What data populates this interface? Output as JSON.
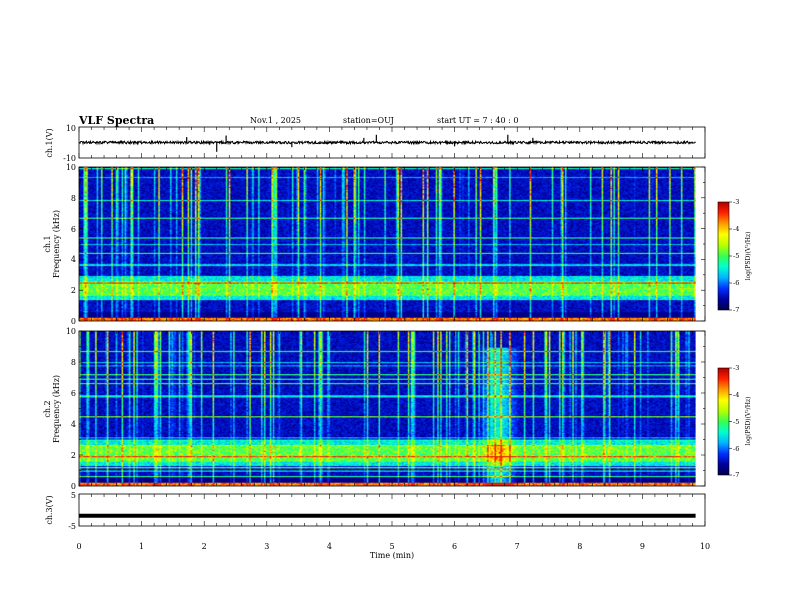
{
  "chart_data": {
    "type": "heatmap",
    "title": "VLF Spectra",
    "header": {
      "date": "Nov.1  , 2025",
      "station": "station=OUJ",
      "start_ut": "start  UT  =   7 : 40 : 0"
    },
    "time_axis": {
      "label": "Time (min)",
      "range": [
        0,
        10
      ],
      "ticks": [
        "0",
        "1",
        "2",
        "3",
        "4",
        "5",
        "6",
        "7",
        "8",
        "9",
        "10"
      ],
      "data_end_min": 9.85
    },
    "panels": [
      {
        "id": "ch1-waveform",
        "type": "line",
        "ylabel": "ch.1(V)",
        "yticks": [
          "10",
          "-10"
        ],
        "ylim": [
          -10,
          10
        ],
        "baseline_v": 0,
        "spikes_v": [
          {
            "t": 1.72,
            "v": 3.5
          },
          {
            "t": 2.2,
            "v": -6
          },
          {
            "t": 2.35,
            "v": 4.5
          },
          {
            "t": 3.4,
            "v": -3
          },
          {
            "t": 4.55,
            "v": 3
          },
          {
            "t": 4.75,
            "v": 5
          },
          {
            "t": 6.0,
            "v": -2.5
          },
          {
            "t": 6.85,
            "v": 5
          },
          {
            "t": 7.25,
            "v": 3
          }
        ]
      },
      {
        "id": "ch1-spectrogram",
        "type": "heatmap",
        "ylabel_line1": "ch.1",
        "ylabel_line2": "Frequency (kHz)",
        "yticks": [
          "0",
          "2",
          "4",
          "6",
          "8",
          "10"
        ],
        "ylim_khz": [
          0,
          10
        ],
        "colorbar": {
          "label": "log(PSD)(V²/Hz)",
          "ticks": [
            "-3",
            "-4",
            "-5",
            "-6",
            "-7"
          ],
          "range": [
            -7,
            -3
          ]
        },
        "background_band_khz": [
          1.4,
          3.0
        ],
        "emission_band_khz": [
          1.7,
          2.6
        ],
        "sferic_top_khz": 10
      },
      {
        "id": "ch2-spectrogram",
        "type": "heatmap",
        "ylabel_line1": "ch.2",
        "ylabel_line2": "Frequency (kHz)",
        "yticks": [
          "0",
          "2",
          "4",
          "6",
          "8",
          "10"
        ],
        "ylim_khz": [
          0,
          10
        ],
        "colorbar": {
          "label": "log(PSD)(V²/Hz)",
          "ticks": [
            "-3",
            "-4",
            "-5",
            "-6",
            "-7"
          ],
          "range": [
            -7,
            -3
          ]
        },
        "background_band_khz": [
          1.3,
          3.0
        ],
        "emission_band_khz": [
          1.6,
          2.6
        ],
        "event_time_min": 6.7,
        "sferic_top_khz": 10
      },
      {
        "id": "ch3-waveform",
        "type": "line",
        "ylabel": "ch.3(V)",
        "yticks": [
          "5",
          "-5"
        ],
        "ylim": [
          -5,
          5
        ],
        "baseline_v": -1.8
      }
    ],
    "colormap": [
      "#00004a",
      "#0000a0",
      "#0030ff",
      "#00b4ff",
      "#00ffd0",
      "#38ff50",
      "#b8ff00",
      "#ffff00",
      "#ff9a00",
      "#ff2000",
      "#b00000",
      "#ffffff"
    ]
  }
}
